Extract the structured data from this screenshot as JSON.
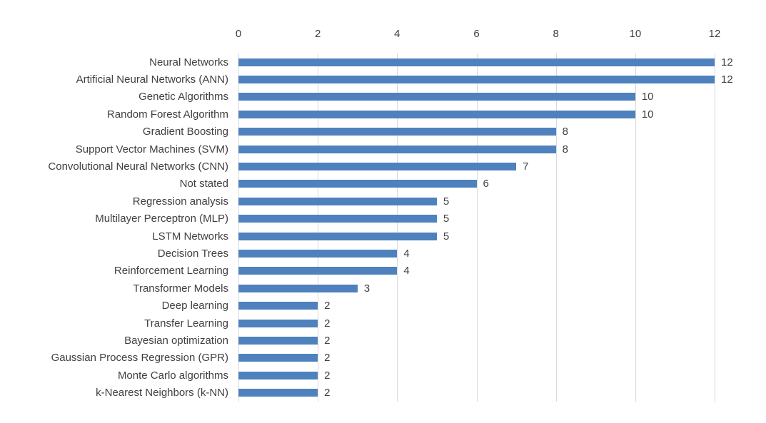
{
  "chart_data": {
    "type": "bar",
    "orientation": "horizontal",
    "title": "",
    "xlabel": "",
    "ylabel": "",
    "categories": [
      "Neural Networks",
      "Artificial Neural Networks (ANN)",
      "Genetic Algorithms",
      "Random Forest Algorithm",
      "Gradient Boosting",
      "Support Vector Machines (SVM)",
      "Convolutional Neural Networks (CNN)",
      "Not stated",
      "Regression analysis",
      "Multilayer Perceptron (MLP)",
      "LSTM Networks",
      "Decision Trees",
      "Reinforcement Learning",
      "Transformer Models",
      "Deep learning",
      "Transfer Learning",
      "Bayesian optimization",
      "Gaussian Process Regression (GPR)",
      "Monte Carlo algorithms",
      "k-Nearest Neighbors (k-NN)"
    ],
    "values": [
      12,
      12,
      10,
      10,
      8,
      8,
      7,
      6,
      5,
      5,
      5,
      4,
      4,
      3,
      2,
      2,
      2,
      2,
      2,
      2
    ],
    "data_labels": [
      "12",
      "12",
      "10",
      "10",
      "8",
      "8",
      "7",
      "6",
      "5",
      "5",
      "5",
      "4",
      "4",
      "3",
      "2",
      "2",
      "2",
      "2",
      "2",
      "2"
    ],
    "xlim": [
      0,
      12
    ],
    "xticks": [
      "0",
      "2",
      "4",
      "6",
      "8",
      "10",
      "12"
    ],
    "xtick_values": [
      0,
      2,
      4,
      6,
      8,
      10,
      12
    ],
    "axis_position": "top",
    "grid": true,
    "legend": false,
    "colors": {
      "bar": "#4e81bd",
      "gridline": "#d9d9d9",
      "text": "#404040",
      "background": "#ffffff"
    }
  }
}
